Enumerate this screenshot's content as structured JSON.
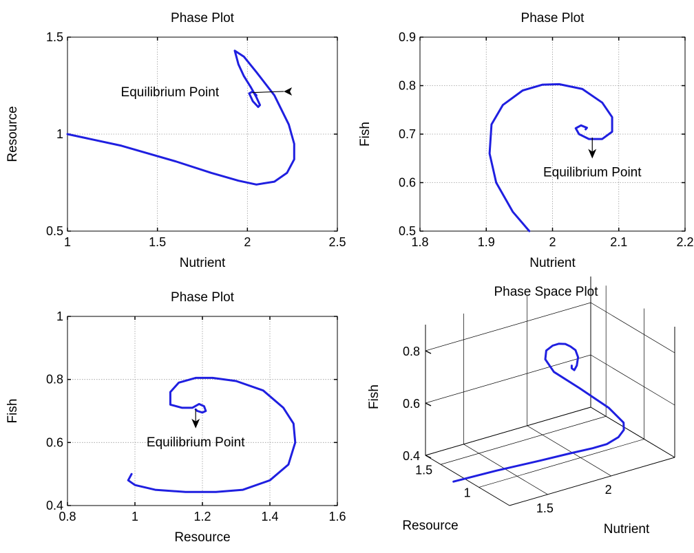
{
  "chart_data": [
    {
      "type": "line",
      "title": "Phase Plot",
      "xlabel": "Nutrient",
      "ylabel": "Resource",
      "xlim": [
        1,
        2.5
      ],
      "ylim": [
        0.5,
        1.5
      ],
      "xticks": [
        1,
        1.5,
        2,
        2.5
      ],
      "yticks": [
        0.5,
        1,
        1.5
      ],
      "xtick_labels": [
        "1",
        "1.5",
        "2",
        "2.5"
      ],
      "ytick_labels": [
        "0.5",
        "1",
        "1.5"
      ],
      "grid": true,
      "annotation": {
        "text": "Equilibrium Point",
        "x": 2.05,
        "y": 1.2,
        "text_x": 1.85,
        "text_y": 1.22
      },
      "series": [
        {
          "color": "#1f1fe0",
          "x": [
            1.0,
            1.3,
            1.6,
            1.8,
            1.95,
            2.05,
            2.15,
            2.22,
            2.26,
            2.26,
            2.23,
            2.15,
            2.05,
            1.98,
            1.93,
            1.95,
            1.98,
            2.02,
            2.05,
            2.07,
            2.06,
            2.03,
            2.01,
            2.03,
            2.05
          ],
          "y": [
            1.0,
            0.94,
            0.86,
            0.8,
            0.76,
            0.74,
            0.755,
            0.8,
            0.87,
            0.95,
            1.05,
            1.2,
            1.32,
            1.4,
            1.43,
            1.36,
            1.3,
            1.24,
            1.19,
            1.15,
            1.14,
            1.17,
            1.21,
            1.22,
            1.2
          ]
        }
      ]
    },
    {
      "type": "line",
      "title": "Phase Plot",
      "xlabel": "Nutrient",
      "ylabel": "Fish",
      "xlim": [
        1.8,
        2.2
      ],
      "ylim": [
        0.5,
        0.9
      ],
      "xticks": [
        1.8,
        1.9,
        2.0,
        2.1,
        2.2
      ],
      "yticks": [
        0.5,
        0.6,
        0.7,
        0.8,
        0.9
      ],
      "xtick_labels": [
        "1.8",
        "1.9",
        "2",
        "2.1",
        "2.2"
      ],
      "ytick_labels": [
        "0.5",
        "0.6",
        "0.7",
        "0.8",
        "0.9"
      ],
      "grid": true,
      "annotation": {
        "text": "Equilibrium Point",
        "x": 2.06,
        "y": 0.693,
        "text_x": 2.06,
        "text_y": 0.627
      },
      "series": [
        {
          "color": "#1f1fe0",
          "x": [
            1.965,
            1.94,
            1.915,
            1.905,
            1.908,
            1.925,
            1.955,
            1.985,
            2.01,
            2.045,
            2.075,
            2.09,
            2.09,
            2.075,
            2.055,
            2.04,
            2.035,
            2.043,
            2.052,
            2.05
          ],
          "y": [
            0.5,
            0.54,
            0.6,
            0.66,
            0.72,
            0.76,
            0.79,
            0.802,
            0.803,
            0.793,
            0.765,
            0.735,
            0.705,
            0.69,
            0.69,
            0.7,
            0.712,
            0.718,
            0.713,
            0.71
          ]
        }
      ]
    },
    {
      "type": "line",
      "title": "Phase Plot",
      "xlabel": "Resource",
      "ylabel": "Fish",
      "xlim": [
        0.8,
        1.6
      ],
      "ylim": [
        0.4,
        1.0
      ],
      "xticks": [
        0.8,
        1.0,
        1.2,
        1.4,
        1.6
      ],
      "yticks": [
        0.4,
        0.6,
        0.8,
        1.0
      ],
      "xtick_labels": [
        "0.8",
        "1",
        "1.2",
        "1.4",
        "1.6"
      ],
      "ytick_labels": [
        "0.4",
        "0.6",
        "0.8",
        "1"
      ],
      "grid": true,
      "annotation": {
        "text": "Equilibrium Point",
        "x": 1.18,
        "y": 0.705,
        "text_x": 1.18,
        "text_y": 0.61
      },
      "series": [
        {
          "color": "#1f1fe0",
          "x": [
            0.99,
            0.98,
            1.0,
            1.06,
            1.15,
            1.24,
            1.32,
            1.4,
            1.455,
            1.475,
            1.47,
            1.44,
            1.38,
            1.3,
            1.23,
            1.18,
            1.13,
            1.105,
            1.105,
            1.14,
            1.17,
            1.19,
            1.205,
            1.21,
            1.2,
            1.185,
            1.18
          ],
          "y": [
            0.5,
            0.48,
            0.465,
            0.45,
            0.443,
            0.443,
            0.45,
            0.48,
            0.53,
            0.6,
            0.66,
            0.71,
            0.765,
            0.795,
            0.805,
            0.805,
            0.79,
            0.76,
            0.72,
            0.71,
            0.71,
            0.722,
            0.715,
            0.7,
            0.695,
            0.7,
            0.705
          ]
        }
      ]
    },
    {
      "type": "line3d",
      "title": "Phase Space Plot",
      "xlabel": "Nutrient",
      "ylabel": "Resource",
      "zlabel": "Fish",
      "xticks": [
        1.5,
        2.0
      ],
      "yticks": [
        1.0,
        1.5
      ],
      "zticks": [
        0.4,
        0.6,
        0.8
      ],
      "xtick_labels": [
        "1.5",
        "2"
      ],
      "ytick_labels": [
        "1",
        "1.5"
      ],
      "ztick_labels": [
        "0.4",
        "0.6",
        "0.8"
      ],
      "xlim": [
        1.2,
        2.5
      ],
      "ylim": [
        0.6,
        1.7
      ],
      "zlim": [
        0.4,
        0.9
      ],
      "grid": true,
      "series": [
        {
          "color": "#1f1fe0",
          "x": [
            1.0,
            1.3,
            1.6,
            1.8,
            1.95,
            2.05,
            2.15,
            2.22,
            2.26,
            2.22,
            2.1,
            1.97,
            1.92,
            1.91,
            1.93,
            1.96,
            2.0,
            2.04,
            2.08,
            2.1,
            2.09,
            2.07,
            2.05,
            2.05
          ],
          "y": [
            1.0,
            0.94,
            0.86,
            0.8,
            0.76,
            0.74,
            0.755,
            0.8,
            0.87,
            1.0,
            1.18,
            1.3,
            1.33,
            1.3,
            1.25,
            1.22,
            1.2,
            1.2,
            1.2,
            1.2,
            1.2,
            1.2,
            1.2,
            1.2
          ],
          "z": [
            0.45,
            0.46,
            0.47,
            0.48,
            0.485,
            0.49,
            0.5,
            0.51,
            0.52,
            0.56,
            0.62,
            0.68,
            0.73,
            0.77,
            0.795,
            0.803,
            0.8,
            0.785,
            0.765,
            0.735,
            0.705,
            0.69,
            0.7,
            0.71
          ]
        }
      ]
    }
  ]
}
